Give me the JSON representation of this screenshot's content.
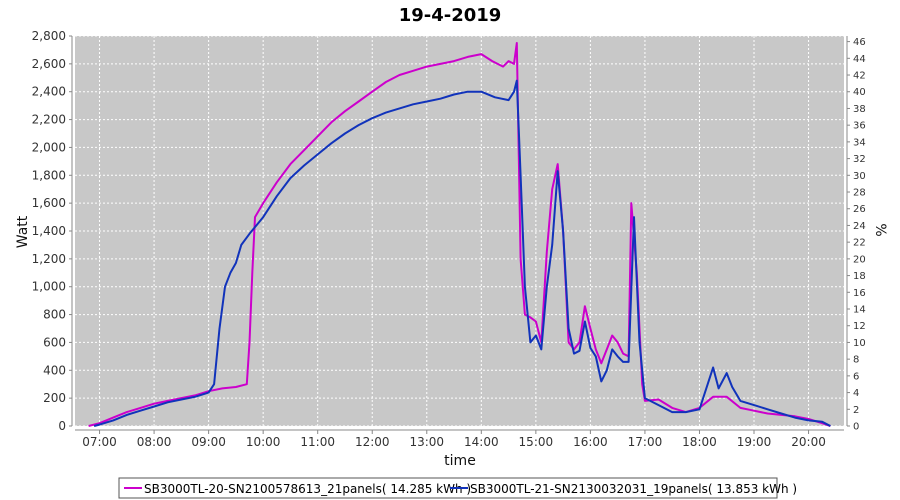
{
  "chart_data": {
    "type": "line",
    "title": "19-4-2019",
    "xlabel": "time",
    "ylabel": "Watt",
    "ylabel_right": "%",
    "x_ticks": [
      "07:00",
      "08:00",
      "09:00",
      "10:00",
      "11:00",
      "12:00",
      "13:00",
      "14:00",
      "15:00",
      "16:00",
      "17:00",
      "18:00",
      "19:00",
      "20:00"
    ],
    "x_range": [
      6.55,
      20.65
    ],
    "ylim": [
      0,
      2800
    ],
    "y_ticks": [
      0,
      200,
      400,
      600,
      800,
      1000,
      1200,
      1400,
      1600,
      1800,
      2000,
      2200,
      2400,
      2600,
      2800
    ],
    "ylim_right": [
      0,
      46.67
    ],
    "y_ticks_right": [
      0,
      2,
      4,
      6,
      8,
      10,
      12,
      14,
      16,
      18,
      20,
      22,
      24,
      26,
      28,
      30,
      32,
      34,
      36,
      38,
      40,
      42,
      44,
      46
    ],
    "grid": true,
    "legend_position": "bottom",
    "series": [
      {
        "name": "SB3000TL-20-SN2100578613_21panels( 14.285 kWh )",
        "color": "#cc00cc",
        "points": [
          [
            6.8,
            0
          ],
          [
            7.0,
            20
          ],
          [
            7.25,
            60
          ],
          [
            7.5,
            100
          ],
          [
            7.75,
            130
          ],
          [
            8.0,
            160
          ],
          [
            8.25,
            180
          ],
          [
            8.5,
            200
          ],
          [
            8.75,
            220
          ],
          [
            9.0,
            250
          ],
          [
            9.25,
            270
          ],
          [
            9.5,
            280
          ],
          [
            9.7,
            300
          ],
          [
            9.75,
            600
          ],
          [
            9.8,
            1100
          ],
          [
            9.85,
            1500
          ],
          [
            10.0,
            1600
          ],
          [
            10.25,
            1750
          ],
          [
            10.5,
            1880
          ],
          [
            10.75,
            1980
          ],
          [
            11.0,
            2080
          ],
          [
            11.25,
            2180
          ],
          [
            11.5,
            2260
          ],
          [
            11.75,
            2330
          ],
          [
            12.0,
            2400
          ],
          [
            12.25,
            2470
          ],
          [
            12.5,
            2520
          ],
          [
            12.75,
            2550
          ],
          [
            13.0,
            2580
          ],
          [
            13.25,
            2600
          ],
          [
            13.5,
            2620
          ],
          [
            13.75,
            2650
          ],
          [
            14.0,
            2670
          ],
          [
            14.2,
            2620
          ],
          [
            14.4,
            2580
          ],
          [
            14.5,
            2620
          ],
          [
            14.6,
            2600
          ],
          [
            14.65,
            2750
          ],
          [
            14.72,
            1200
          ],
          [
            14.8,
            800
          ],
          [
            14.9,
            780
          ],
          [
            15.0,
            750
          ],
          [
            15.1,
            600
          ],
          [
            15.2,
            1250
          ],
          [
            15.3,
            1700
          ],
          [
            15.4,
            1880
          ],
          [
            15.5,
            1400
          ],
          [
            15.6,
            600
          ],
          [
            15.7,
            550
          ],
          [
            15.8,
            600
          ],
          [
            15.9,
            860
          ],
          [
            16.0,
            700
          ],
          [
            16.1,
            550
          ],
          [
            16.2,
            450
          ],
          [
            16.3,
            550
          ],
          [
            16.4,
            650
          ],
          [
            16.5,
            600
          ],
          [
            16.6,
            520
          ],
          [
            16.7,
            500
          ],
          [
            16.75,
            1600
          ],
          [
            16.85,
            1100
          ],
          [
            16.95,
            300
          ],
          [
            17.0,
            180
          ],
          [
            17.25,
            190
          ],
          [
            17.5,
            130
          ],
          [
            17.75,
            100
          ],
          [
            18.0,
            130
          ],
          [
            18.25,
            210
          ],
          [
            18.5,
            210
          ],
          [
            18.75,
            130
          ],
          [
            19.0,
            110
          ],
          [
            19.25,
            90
          ],
          [
            19.5,
            80
          ],
          [
            19.75,
            70
          ],
          [
            20.0,
            50
          ],
          [
            20.25,
            20
          ],
          [
            20.4,
            0
          ]
        ]
      },
      {
        "name": "SB3000TL-21-SN2130032031_19panels( 13.853 kWh )",
        "color": "#1133bb",
        "points": [
          [
            6.9,
            0
          ],
          [
            7.0,
            10
          ],
          [
            7.25,
            40
          ],
          [
            7.5,
            80
          ],
          [
            7.75,
            110
          ],
          [
            8.0,
            140
          ],
          [
            8.25,
            170
          ],
          [
            8.5,
            190
          ],
          [
            8.75,
            210
          ],
          [
            9.0,
            240
          ],
          [
            9.1,
            300
          ],
          [
            9.2,
            700
          ],
          [
            9.3,
            1000
          ],
          [
            9.4,
            1100
          ],
          [
            9.5,
            1170
          ],
          [
            9.6,
            1300
          ],
          [
            9.75,
            1380
          ],
          [
            10.0,
            1500
          ],
          [
            10.25,
            1650
          ],
          [
            10.5,
            1780
          ],
          [
            10.75,
            1870
          ],
          [
            11.0,
            1950
          ],
          [
            11.25,
            2030
          ],
          [
            11.5,
            2100
          ],
          [
            11.75,
            2160
          ],
          [
            12.0,
            2210
          ],
          [
            12.25,
            2250
          ],
          [
            12.5,
            2280
          ],
          [
            12.75,
            2310
          ],
          [
            13.0,
            2330
          ],
          [
            13.25,
            2350
          ],
          [
            13.5,
            2380
          ],
          [
            13.75,
            2400
          ],
          [
            14.0,
            2400
          ],
          [
            14.25,
            2360
          ],
          [
            14.5,
            2340
          ],
          [
            14.6,
            2400
          ],
          [
            14.65,
            2480
          ],
          [
            14.72,
            1800
          ],
          [
            14.8,
            1000
          ],
          [
            14.9,
            600
          ],
          [
            15.0,
            650
          ],
          [
            15.1,
            550
          ],
          [
            15.2,
            1000
          ],
          [
            15.3,
            1300
          ],
          [
            15.4,
            1830
          ],
          [
            15.5,
            1400
          ],
          [
            15.6,
            700
          ],
          [
            15.7,
            520
          ],
          [
            15.8,
            540
          ],
          [
            15.9,
            750
          ],
          [
            16.0,
            560
          ],
          [
            16.1,
            500
          ],
          [
            16.2,
            320
          ],
          [
            16.3,
            400
          ],
          [
            16.4,
            550
          ],
          [
            16.5,
            500
          ],
          [
            16.6,
            460
          ],
          [
            16.7,
            460
          ],
          [
            16.8,
            1500
          ],
          [
            16.9,
            600
          ],
          [
            17.0,
            200
          ],
          [
            17.25,
            150
          ],
          [
            17.5,
            100
          ],
          [
            17.75,
            100
          ],
          [
            18.0,
            120
          ],
          [
            18.25,
            420
          ],
          [
            18.35,
            270
          ],
          [
            18.5,
            380
          ],
          [
            18.6,
            280
          ],
          [
            18.75,
            180
          ],
          [
            19.0,
            150
          ],
          [
            19.25,
            120
          ],
          [
            19.5,
            90
          ],
          [
            19.75,
            60
          ],
          [
            20.0,
            40
          ],
          [
            20.25,
            30
          ],
          [
            20.4,
            0
          ]
        ]
      }
    ]
  }
}
